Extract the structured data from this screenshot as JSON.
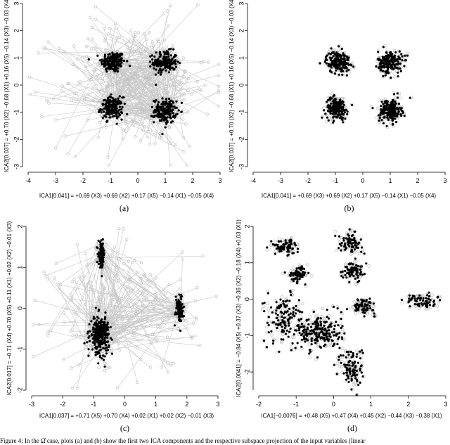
{
  "caption_line": "Figure 4: In the Ω̂ case, plots (a) and (b) show the first two ICA components and the respective subspace projection of the input variables (linear",
  "chart_data": [
    {
      "type": "scatter",
      "panel_label": "(a)",
      "xlabel": "ICA1[0.041] = +0.69 (X3) +0.69 (X2) +0.17 (X5) −0.14 (X1) −0.05 (X4)",
      "ylabel": "ICA2[0.037] = +0.70 (X2) −0.68 (X1) +0.16 (X5) −0.14 (X3) −0.03 (X4)",
      "xlim": [
        -4,
        3
      ],
      "ylim": [
        -3,
        3
      ],
      "xticks": [
        -4,
        -3,
        -2,
        -1,
        0,
        1,
        2,
        3
      ],
      "yticks": [
        -3,
        -2,
        -1,
        0,
        1,
        2,
        3
      ],
      "grey_connected_scatter": true,
      "clusters": [
        {
          "cx": -0.9,
          "cy": 0.85,
          "sx": 0.22,
          "sy": 0.2,
          "n": 170
        },
        {
          "cx": 1.0,
          "cy": 0.85,
          "sx": 0.22,
          "sy": 0.2,
          "n": 170
        },
        {
          "cx": -0.95,
          "cy": -0.85,
          "sx": 0.2,
          "sy": 0.2,
          "n": 170
        },
        {
          "cx": 1.0,
          "cy": -0.95,
          "sx": 0.2,
          "sy": 0.22,
          "n": 170
        }
      ]
    },
    {
      "type": "scatter",
      "panel_label": "(b)",
      "xlabel": "ICA1[0.041] = +0.69 (X3) +0.69 (X2) +0.17 (X5) −0.14 (X1) −0.05 (X4)",
      "ylabel": "ICA2[0.037] = +0.70 (X2) −0.68 (X1) +0.16 (X5) −0.14 (X3) −0.03 (X4)",
      "xlim": [
        -4,
        3
      ],
      "ylim": [
        -3,
        3
      ],
      "xticks": [
        -4,
        -3,
        -2,
        -1,
        0,
        1,
        2,
        3
      ],
      "yticks": [
        -3,
        -2,
        -1,
        0,
        1,
        2,
        3
      ],
      "grey_connected_scatter": false,
      "clusters": [
        {
          "cx": -0.9,
          "cy": 0.85,
          "sx": 0.22,
          "sy": 0.2,
          "n": 170
        },
        {
          "cx": 1.0,
          "cy": 0.85,
          "sx": 0.22,
          "sy": 0.2,
          "n": 170
        },
        {
          "cx": -0.95,
          "cy": -0.85,
          "sx": 0.2,
          "sy": 0.2,
          "n": 170
        },
        {
          "cx": 1.0,
          "cy": -0.95,
          "sx": 0.2,
          "sy": 0.22,
          "n": 170
        }
      ]
    },
    {
      "type": "scatter",
      "panel_label": "(c)",
      "xlabel": "ICA1[0.037] = +0.71 (X5) +0.70 (X4) +0.02 (X1) +0.02 (X2) −0.01 (X3)",
      "ylabel": "ICA2[0.017] = −0.71 (X4) +0.70 (X5) +0.11 (X1) +0.02 (X2) −0.01 (X3)",
      "xlim": [
        -3,
        3
      ],
      "ylim": [
        -2,
        2
      ],
      "xticks": [
        -3,
        -2,
        -1,
        0,
        1,
        2,
        3
      ],
      "yticks": [
        -2,
        -1,
        0,
        1,
        2
      ],
      "grey_connected_scatter": true,
      "clusters": [
        {
          "cx": -0.75,
          "cy": 1.3,
          "sx": 0.05,
          "sy": 0.15,
          "n": 90
        },
        {
          "cx": -0.8,
          "cy": -0.65,
          "sx": 0.15,
          "sy": 0.22,
          "n": 260
        },
        {
          "cx": 1.75,
          "cy": 0.0,
          "sx": 0.06,
          "sy": 0.17,
          "n": 90
        }
      ]
    },
    {
      "type": "scatter",
      "panel_label": "(d)",
      "xlabel": "ICA1[−0.0076] = +0.48 (X5) +0.47 (X4) +0.45 (X2) −0.44 (X3) −0.38 (X1)",
      "ylabel": "ICA2[0.0041] = −0.84 (X5) +0.37 (X3) −0.36 (X2) −0.18 (X4) +0.03 (X1)",
      "xlim": [
        -2,
        3
      ],
      "ylim": [
        -2.5,
        2
      ],
      "xticks": [
        -2,
        -1,
        0,
        1,
        2,
        3
      ],
      "yticks": [
        -2,
        -1,
        0,
        1,
        2
      ],
      "grey_connected_scatter": false,
      "clusters": [
        {
          "cx": -1.3,
          "cy": 1.45,
          "sx": 0.18,
          "sy": 0.1,
          "n": 70
        },
        {
          "cx": 0.45,
          "cy": 1.55,
          "sx": 0.16,
          "sy": 0.12,
          "n": 70
        },
        {
          "cx": -0.95,
          "cy": 0.7,
          "sx": 0.12,
          "sy": 0.1,
          "n": 55
        },
        {
          "cx": 0.55,
          "cy": 0.8,
          "sx": 0.15,
          "sy": 0.12,
          "n": 70
        },
        {
          "cx": 0.8,
          "cy": -0.2,
          "sx": 0.15,
          "sy": 0.1,
          "n": 70
        },
        {
          "cx": 2.35,
          "cy": -0.05,
          "sx": 0.2,
          "sy": 0.1,
          "n": 60
        },
        {
          "cx": -1.35,
          "cy": -0.5,
          "sx": 0.25,
          "sy": 0.35,
          "n": 110
        },
        {
          "cx": -0.4,
          "cy": -0.9,
          "sx": 0.3,
          "sy": 0.25,
          "n": 200
        },
        {
          "cx": 0.5,
          "cy": -1.9,
          "sx": 0.15,
          "sy": 0.3,
          "n": 90
        }
      ]
    }
  ]
}
